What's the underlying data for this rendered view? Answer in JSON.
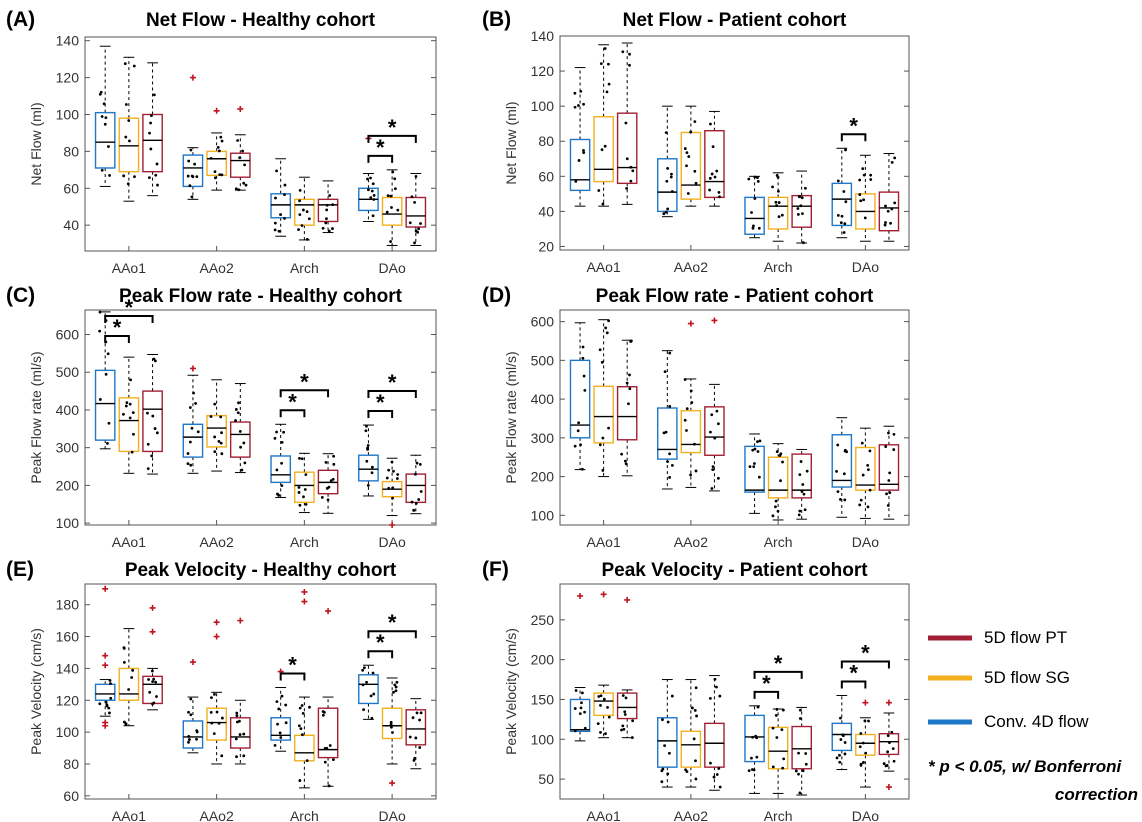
{
  "colors": {
    "conv4d": "#1f77c8",
    "sg5d": "#f2b01e",
    "pt5d": "#a31f34",
    "outlier": "#c0141e",
    "axis": "#555555",
    "points": "#000000"
  },
  "legend": {
    "items": [
      {
        "label": "5D flow PT",
        "color": "#a31f34"
      },
      {
        "label": "5D flow SG",
        "color": "#f2b01e"
      },
      {
        "label": "Conv. 4D flow",
        "color": "#1f77c8"
      }
    ],
    "note_line1": "* p < 0.05, w/ Bonferroni",
    "note_line2": "correction",
    "placement": "right"
  },
  "chart_data": [
    {
      "panel": "(A)",
      "type": "box",
      "title": "Net Flow - Healthy cohort",
      "ylabel": "Net Flow (ml)",
      "ylim": [
        26,
        142
      ],
      "yticks": [
        40,
        60,
        80,
        100,
        120,
        140
      ],
      "categories": [
        "AAo1",
        "AAo2",
        "Arch",
        "DAo"
      ],
      "series_order": [
        "Conv. 4D flow",
        "5D flow SG",
        "5D flow PT"
      ],
      "boxes": [
        [
          {
            "wl": 61,
            "q1": 71,
            "med": 85,
            "q3": 101,
            "wh": 137,
            "out": []
          },
          {
            "wl": 53,
            "q1": 69,
            "med": 83,
            "q3": 98,
            "wh": 131,
            "out": []
          },
          {
            "wl": 56,
            "q1": 69,
            "med": 86,
            "q3": 100,
            "wh": 128,
            "out": []
          }
        ],
        [
          {
            "wl": 54,
            "q1": 61,
            "med": 71,
            "q3": 78,
            "wh": 82,
            "out": [
              120
            ]
          },
          {
            "wl": 59,
            "q1": 67,
            "med": 76,
            "q3": 80,
            "wh": 90,
            "out": [
              102
            ]
          },
          {
            "wl": 59,
            "q1": 66,
            "med": 75,
            "q3": 79,
            "wh": 89,
            "out": [
              103
            ]
          }
        ],
        [
          {
            "wl": 34,
            "q1": 44,
            "med": 51,
            "q3": 57,
            "wh": 76,
            "out": []
          },
          {
            "wl": 32,
            "q1": 40,
            "med": 51,
            "q3": 54,
            "wh": 66,
            "out": []
          },
          {
            "wl": 36,
            "q1": 42,
            "med": 51,
            "q3": 54,
            "wh": 64,
            "out": []
          }
        ],
        [
          {
            "wl": 42,
            "q1": 48,
            "med": 54,
            "q3": 60,
            "wh": 68,
            "out": [
              87
            ]
          },
          {
            "wl": 29,
            "q1": 40,
            "med": 46,
            "q3": 55,
            "wh": 70,
            "out": []
          },
          {
            "wl": 29,
            "q1": 39,
            "med": 45,
            "q3": 55,
            "wh": 68,
            "out": []
          }
        ]
      ],
      "significance": [
        {
          "group": 3,
          "from": 0,
          "to": 1
        },
        {
          "group": 3,
          "from": 0,
          "to": 2
        }
      ]
    },
    {
      "panel": "(B)",
      "type": "box",
      "title": "Net Flow - Patient cohort",
      "ylabel": "Net Flow (ml)",
      "ylim": [
        18,
        140
      ],
      "yticks": [
        20,
        40,
        60,
        80,
        100,
        120,
        140
      ],
      "categories": [
        "AAo1",
        "AAo2",
        "Arch",
        "DAo"
      ],
      "series_order": [
        "Conv. 4D flow",
        "5D flow SG",
        "5D flow PT"
      ],
      "boxes": [
        [
          {
            "wl": 43,
            "q1": 52,
            "med": 58,
            "q3": 81,
            "wh": 122,
            "out": []
          },
          {
            "wl": 43,
            "q1": 57,
            "med": 64,
            "q3": 94,
            "wh": 135,
            "out": []
          },
          {
            "wl": 44,
            "q1": 56,
            "med": 65,
            "q3": 96,
            "wh": 136,
            "out": []
          }
        ],
        [
          {
            "wl": 37,
            "q1": 40,
            "med": 51,
            "q3": 70,
            "wh": 100,
            "out": []
          },
          {
            "wl": 43,
            "q1": 47,
            "med": 55,
            "q3": 85,
            "wh": 100,
            "out": []
          },
          {
            "wl": 43,
            "q1": 48,
            "med": 57,
            "q3": 86,
            "wh": 97,
            "out": []
          }
        ],
        [
          {
            "wl": 25,
            "q1": 27,
            "med": 36,
            "q3": 48,
            "wh": 60,
            "out": []
          },
          {
            "wl": 23,
            "q1": 30,
            "med": 43,
            "q3": 48,
            "wh": 62,
            "out": []
          },
          {
            "wl": 22,
            "q1": 31,
            "med": 43,
            "q3": 49,
            "wh": 63,
            "out": []
          }
        ],
        [
          {
            "wl": 25,
            "q1": 32,
            "med": 47,
            "q3": 56,
            "wh": 76,
            "out": []
          },
          {
            "wl": 23,
            "q1": 30,
            "med": 40,
            "q3": 50,
            "wh": 72,
            "out": []
          },
          {
            "wl": 23,
            "q1": 29,
            "med": 42,
            "q3": 51,
            "wh": 73,
            "out": []
          }
        ]
      ],
      "significance": [
        {
          "group": 3,
          "from": 0,
          "to": 1
        }
      ]
    },
    {
      "panel": "(C)",
      "type": "box",
      "title": "Peak Flow rate - Healthy cohort",
      "ylabel": "Peak Flow rate (ml/s)",
      "ylim": [
        95,
        665
      ],
      "yticks": [
        100,
        200,
        300,
        400,
        500,
        600
      ],
      "categories": [
        "AAo1",
        "AAo2",
        "Arch",
        "DAo"
      ],
      "series_order": [
        "Conv. 4D flow",
        "5D flow SG",
        "5D flow PT"
      ],
      "boxes": [
        [
          {
            "wl": 297,
            "q1": 320,
            "med": 417,
            "q3": 505,
            "wh": 660,
            "out": []
          },
          {
            "wl": 232,
            "q1": 290,
            "med": 372,
            "q3": 432,
            "wh": 540,
            "out": []
          },
          {
            "wl": 230,
            "q1": 290,
            "med": 402,
            "q3": 450,
            "wh": 547,
            "out": []
          }
        ],
        [
          {
            "wl": 232,
            "q1": 275,
            "med": 328,
            "q3": 362,
            "wh": 492,
            "out": [
              510
            ]
          },
          {
            "wl": 238,
            "q1": 302,
            "med": 352,
            "q3": 385,
            "wh": 480,
            "out": []
          },
          {
            "wl": 234,
            "q1": 275,
            "med": 335,
            "q3": 368,
            "wh": 470,
            "out": []
          }
        ],
        [
          {
            "wl": 168,
            "q1": 208,
            "med": 228,
            "q3": 278,
            "wh": 362,
            "out": []
          },
          {
            "wl": 128,
            "q1": 155,
            "med": 200,
            "q3": 235,
            "wh": 285,
            "out": []
          },
          {
            "wl": 126,
            "q1": 178,
            "med": 208,
            "q3": 240,
            "wh": 284,
            "out": []
          }
        ],
        [
          {
            "wl": 172,
            "q1": 212,
            "med": 243,
            "q3": 280,
            "wh": 360,
            "out": []
          },
          {
            "wl": 120,
            "q1": 170,
            "med": 190,
            "q3": 210,
            "wh": 272,
            "out": [
              95
            ]
          },
          {
            "wl": 125,
            "q1": 155,
            "med": 200,
            "q3": 230,
            "wh": 280,
            "out": []
          }
        ]
      ],
      "significance": [
        {
          "group": 0,
          "from": 0,
          "to": 1
        },
        {
          "group": 0,
          "from": 0,
          "to": 2
        },
        {
          "group": 2,
          "from": 0,
          "to": 1
        },
        {
          "group": 2,
          "from": 0,
          "to": 2
        },
        {
          "group": 3,
          "from": 0,
          "to": 1
        },
        {
          "group": 3,
          "from": 0,
          "to": 2
        }
      ]
    },
    {
      "panel": "(D)",
      "type": "box",
      "title": "Peak Flow rate - Patient cohort",
      "ylabel": "Peak Flow rate (ml/s)",
      "ylim": [
        75,
        630
      ],
      "yticks": [
        100,
        200,
        300,
        400,
        500,
        600
      ],
      "categories": [
        "AAo1",
        "AAo2",
        "Arch",
        "DAo"
      ],
      "series_order": [
        "Conv. 4D flow",
        "5D flow SG",
        "5D flow PT"
      ],
      "boxes": [
        [
          {
            "wl": 218,
            "q1": 300,
            "med": 333,
            "q3": 500,
            "wh": 597,
            "out": []
          },
          {
            "wl": 200,
            "q1": 287,
            "med": 355,
            "q3": 433,
            "wh": 605,
            "out": []
          },
          {
            "wl": 202,
            "q1": 295,
            "med": 355,
            "q3": 432,
            "wh": 552,
            "out": []
          }
        ],
        [
          {
            "wl": 168,
            "q1": 245,
            "med": 270,
            "q3": 377,
            "wh": 525,
            "out": []
          },
          {
            "wl": 172,
            "q1": 262,
            "med": 283,
            "q3": 370,
            "wh": 452,
            "out": [
              595
            ]
          },
          {
            "wl": 163,
            "q1": 255,
            "med": 302,
            "q3": 380,
            "wh": 438,
            "out": [
              603
            ]
          }
        ],
        [
          {
            "wl": 105,
            "q1": 160,
            "med": 165,
            "q3": 278,
            "wh": 310,
            "out": []
          },
          {
            "wl": 88,
            "q1": 145,
            "med": 165,
            "q3": 250,
            "wh": 285,
            "out": []
          },
          {
            "wl": 90,
            "q1": 145,
            "med": 165,
            "q3": 258,
            "wh": 270,
            "out": []
          }
        ],
        [
          {
            "wl": 95,
            "q1": 173,
            "med": 190,
            "q3": 308,
            "wh": 352,
            "out": []
          },
          {
            "wl": 92,
            "q1": 165,
            "med": 178,
            "q3": 275,
            "wh": 325,
            "out": []
          },
          {
            "wl": 90,
            "q1": 165,
            "med": 180,
            "q3": 282,
            "wh": 330,
            "out": []
          }
        ]
      ],
      "significance": []
    },
    {
      "panel": "(E)",
      "type": "box",
      "title": "Peak Velocity - Healthy cohort",
      "ylabel": "Peak Velocity (cm/s)",
      "ylim": [
        58,
        193
      ],
      "yticks": [
        60,
        80,
        100,
        120,
        140,
        160,
        180
      ],
      "categories": [
        "AAo1",
        "AAo2",
        "Arch",
        "DAo"
      ],
      "series_order": [
        "Conv. 4D flow",
        "5D flow SG",
        "5D flow PT"
      ],
      "boxes": [
        [
          {
            "wl": 110,
            "q1": 120,
            "med": 124,
            "q3": 130,
            "wh": 133,
            "out": [
              190,
              148,
              142,
              106,
              104
            ]
          },
          {
            "wl": 104,
            "q1": 120,
            "med": 124,
            "q3": 140,
            "wh": 165,
            "out": []
          },
          {
            "wl": 114,
            "q1": 118,
            "med": 130,
            "q3": 135,
            "wh": 140,
            "out": [
              178,
              163
            ]
          }
        ],
        [
          {
            "wl": 87,
            "q1": 90,
            "med": 97,
            "q3": 107,
            "wh": 122,
            "out": [
              144
            ]
          },
          {
            "wl": 80,
            "q1": 95,
            "med": 106,
            "q3": 115,
            "wh": 125,
            "out": [
              169,
              160
            ]
          },
          {
            "wl": 80,
            "q1": 90,
            "med": 97,
            "q3": 109,
            "wh": 120,
            "out": [
              170
            ]
          }
        ],
        [
          {
            "wl": 88,
            "q1": 95,
            "med": 98,
            "q3": 109,
            "wh": 128,
            "out": [
              138
            ]
          },
          {
            "wl": 65,
            "q1": 82,
            "med": 87,
            "q3": 98,
            "wh": 122,
            "out": [
              188,
              182
            ]
          },
          {
            "wl": 66,
            "q1": 84,
            "med": 89,
            "q3": 115,
            "wh": 122,
            "out": [
              176
            ]
          }
        ],
        [
          {
            "wl": 108,
            "q1": 118,
            "med": 130,
            "q3": 136,
            "wh": 142,
            "out": []
          },
          {
            "wl": 80,
            "q1": 96,
            "med": 104,
            "q3": 115,
            "wh": 134,
            "out": [
              68
            ]
          },
          {
            "wl": 77,
            "q1": 92,
            "med": 102,
            "q3": 114,
            "wh": 121,
            "out": []
          }
        ]
      ],
      "significance": [
        {
          "group": 2,
          "from": 0,
          "to": 1
        },
        {
          "group": 3,
          "from": 0,
          "to": 1
        },
        {
          "group": 3,
          "from": 0,
          "to": 2
        }
      ]
    },
    {
      "panel": "(F)",
      "type": "box",
      "title": "Peak Velocity - Patient cohort",
      "ylabel": "Peak Velocity (cm/s)",
      "ylim": [
        25,
        295
      ],
      "yticks": [
        50,
        100,
        150,
        200,
        250
      ],
      "categories": [
        "AAo1",
        "AAo2",
        "Arch",
        "DAo"
      ],
      "series_order": [
        "Conv. 4D flow",
        "5D flow SG",
        "5D flow PT"
      ],
      "boxes": [
        [
          {
            "wl": 98,
            "q1": 110,
            "med": 112,
            "q3": 150,
            "wh": 165,
            "out": [
              280
            ]
          },
          {
            "wl": 102,
            "q1": 130,
            "med": 148,
            "q3": 158,
            "wh": 168,
            "out": [
              282
            ]
          },
          {
            "wl": 102,
            "q1": 126,
            "med": 140,
            "q3": 158,
            "wh": 162,
            "out": [
              275
            ]
          }
        ],
        [
          {
            "wl": 40,
            "q1": 65,
            "med": 98,
            "q3": 127,
            "wh": 175,
            "out": []
          },
          {
            "wl": 40,
            "q1": 65,
            "med": 93,
            "q3": 110,
            "wh": 175,
            "out": []
          },
          {
            "wl": 36,
            "q1": 65,
            "med": 95,
            "q3": 120,
            "wh": 180,
            "out": []
          }
        ],
        [
          {
            "wl": 32,
            "q1": 72,
            "med": 103,
            "q3": 130,
            "wh": 142,
            "out": []
          },
          {
            "wl": 32,
            "q1": 63,
            "med": 85,
            "q3": 115,
            "wh": 138,
            "out": []
          },
          {
            "wl": 30,
            "q1": 63,
            "med": 88,
            "q3": 116,
            "wh": 140,
            "out": []
          }
        ],
        [
          {
            "wl": 62,
            "q1": 86,
            "med": 106,
            "q3": 120,
            "wh": 155,
            "out": []
          },
          {
            "wl": 40,
            "q1": 80,
            "med": 95,
            "q3": 106,
            "wh": 127,
            "out": [
              146
            ]
          },
          {
            "wl": 60,
            "q1": 81,
            "med": 97,
            "q3": 107,
            "wh": 133,
            "out": [
              146,
              40
            ]
          }
        ]
      ],
      "significance": [
        {
          "group": 2,
          "from": 0,
          "to": 1
        },
        {
          "group": 2,
          "from": 0,
          "to": 2
        },
        {
          "group": 3,
          "from": 0,
          "to": 1
        },
        {
          "group": 3,
          "from": 0,
          "to": 2
        }
      ]
    }
  ]
}
